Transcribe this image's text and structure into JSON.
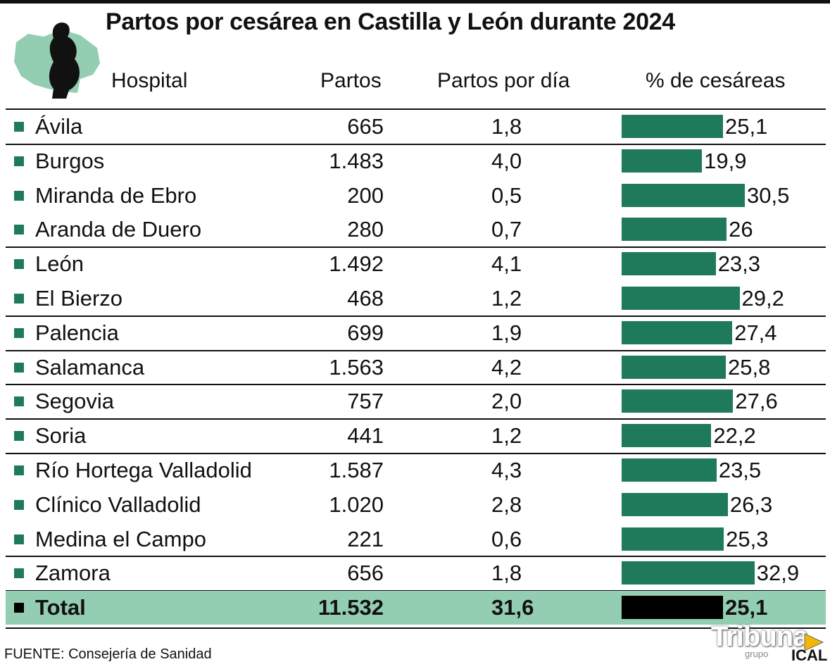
{
  "title": "Partos por cesárea en Castilla y León durante 2024",
  "headers": {
    "hospital": "Hospital",
    "partos": "Partos",
    "partos_dia": "Partos por día",
    "cesareas": "% de cesáreas"
  },
  "colors": {
    "bar": "#1f7a5c",
    "total_row": "#93cdb2",
    "total_bar": "#000000"
  },
  "icons": {
    "logo": "pregnant-woman-map-icon"
  },
  "chart_data": {
    "type": "table",
    "title": "Partos por cesárea en Castilla y León durante 2024",
    "columns": [
      "Hospital",
      "Partos",
      "Partos por día",
      "% de cesáreas"
    ],
    "rows": [
      {
        "hospital": "Ávila",
        "partos": "665",
        "dia": "1,8",
        "cesareas": "25,1",
        "pct": 25.1
      },
      {
        "hospital": "Burgos",
        "partos": "1.483",
        "dia": "4,0",
        "cesareas": "19,9",
        "pct": 19.9
      },
      {
        "hospital": "Miranda de Ebro",
        "partos": "200",
        "dia": "0,5",
        "cesareas": "30,5",
        "pct": 30.5
      },
      {
        "hospital": "Aranda de Duero",
        "partos": "280",
        "dia": "0,7",
        "cesareas": "26",
        "pct": 26
      },
      {
        "hospital": "León",
        "partos": "1.492",
        "dia": "4,1",
        "cesareas": "23,3",
        "pct": 23.3
      },
      {
        "hospital": "El Bierzo",
        "partos": "468",
        "dia": "1,2",
        "cesareas": "29,2",
        "pct": 29.2
      },
      {
        "hospital": "Palencia",
        "partos": "699",
        "dia": "1,9",
        "cesareas": "27,4",
        "pct": 27.4
      },
      {
        "hospital": "Salamanca",
        "partos": "1.563",
        "dia": "4,2",
        "cesareas": "25,8",
        "pct": 25.8
      },
      {
        "hospital": "Segovia",
        "partos": "757",
        "dia": "2,0",
        "cesareas": "27,6",
        "pct": 27.6
      },
      {
        "hospital": "Soria",
        "partos": "441",
        "dia": "1,2",
        "cesareas": "22,2",
        "pct": 22.2
      },
      {
        "hospital": "Río Hortega Valladolid",
        "partos": "1.587",
        "dia": "4,3",
        "cesareas": "23,5",
        "pct": 23.5
      },
      {
        "hospital": "Clínico Valladolid",
        "partos": "1.020",
        "dia": "2,8",
        "cesareas": "26,3",
        "pct": 26.3
      },
      {
        "hospital": "Medina el Campo",
        "partos": "221",
        "dia": "0,6",
        "cesareas": "25,3",
        "pct": 25.3
      },
      {
        "hospital": "Zamora",
        "partos": "656",
        "dia": "1,8",
        "cesareas": "32,9",
        "pct": 32.9
      }
    ],
    "total": {
      "hospital": "Total",
      "partos": "11.532",
      "dia": "31,6",
      "cesareas": "25,1",
      "pct": 25.1
    },
    "separators_after_rows": [
      0,
      3,
      5,
      6,
      7,
      8,
      9,
      12
    ]
  },
  "source": "FUENTE: Consejería de Sanidad",
  "brand": {
    "name": "Tribuna",
    "sub": "grupo",
    "agency": "ICAL"
  }
}
